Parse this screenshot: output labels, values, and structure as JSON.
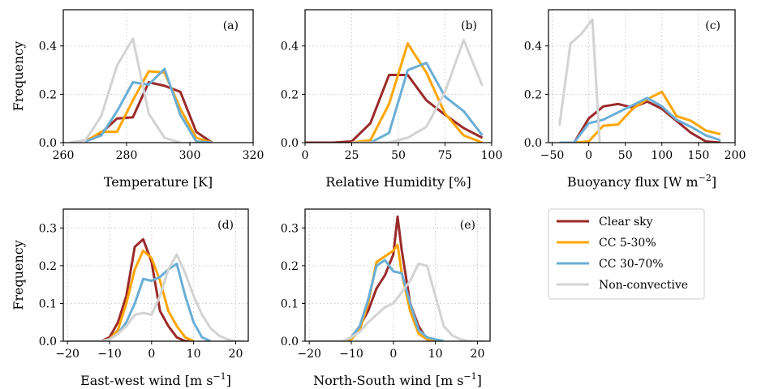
{
  "series_styles": [
    {
      "name": "Clear sky",
      "color": "#9b2a2a"
    },
    {
      "name": "CC 5-30%",
      "color": "#ffa500"
    },
    {
      "name": "CC 30-70%",
      "color": "#6aaed6"
    },
    {
      "name": "Non-convective",
      "color": "#d3d3d3"
    }
  ],
  "chart_data": [
    {
      "type": "line",
      "panel_label": "(a)",
      "xlabel": "Temperature  [K]",
      "ylabel": "Frequency",
      "xlim": [
        260,
        320
      ],
      "ylim": [
        0,
        0.55
      ],
      "xticks": [
        260,
        280,
        300,
        320
      ],
      "yticks": [
        0.0,
        0.2,
        0.4
      ],
      "xtick_labels": [
        "260",
        "280",
        "300",
        "320"
      ],
      "ytick_labels": [
        "0.0",
        "0.2",
        "0.4"
      ],
      "grid": true,
      "series": [
        {
          "name": "Clear sky",
          "x": [
            267,
            272,
            277,
            282,
            287,
            292,
            297,
            302,
            307
          ],
          "y": [
            0.005,
            0.04,
            0.1,
            0.105,
            0.25,
            0.235,
            0.21,
            0.045,
            0.0
          ]
        },
        {
          "name": "CC 5-30%",
          "x": [
            267,
            272,
            277,
            282,
            287,
            292,
            297,
            302,
            307
          ],
          "y": [
            0.005,
            0.045,
            0.045,
            0.175,
            0.295,
            0.29,
            0.14,
            0.02,
            0.0
          ]
        },
        {
          "name": "CC 30-70%",
          "x": [
            267,
            272,
            277,
            282,
            287,
            292,
            297,
            302,
            307
          ],
          "y": [
            0.005,
            0.03,
            0.13,
            0.25,
            0.24,
            0.305,
            0.115,
            0.005,
            0.0
          ]
        },
        {
          "name": "Non-convective",
          "x": [
            262,
            267,
            272,
            277,
            282,
            287,
            292,
            297
          ],
          "y": [
            0.0,
            0.01,
            0.11,
            0.32,
            0.43,
            0.12,
            0.02,
            0.0
          ]
        }
      ]
    },
    {
      "type": "line",
      "panel_label": "(b)",
      "xlabel": "Relative Humidity [%]",
      "ylabel": "",
      "xlim": [
        0,
        100
      ],
      "ylim": [
        0,
        0.55
      ],
      "xticks": [
        0,
        25,
        50,
        75,
        100
      ],
      "yticks": [
        0.0,
        0.2,
        0.4
      ],
      "xtick_labels": [
        "0",
        "25",
        "50",
        "75",
        "100"
      ],
      "ytick_labels": [
        "0.0",
        "0.2",
        "0.4"
      ],
      "grid": true,
      "series": [
        {
          "name": "Clear sky",
          "x": [
            0,
            5,
            15,
            25,
            35,
            45,
            55,
            65,
            75,
            85,
            95
          ],
          "y": [
            0.0,
            0.0,
            0.0,
            0.005,
            0.08,
            0.28,
            0.28,
            0.175,
            0.115,
            0.06,
            0.02
          ]
        },
        {
          "name": "CC 5-30%",
          "x": [
            25,
            35,
            45,
            55,
            65,
            75,
            85,
            95
          ],
          "y": [
            0.0,
            0.01,
            0.16,
            0.41,
            0.29,
            0.12,
            0.03,
            0.0
          ]
        },
        {
          "name": "CC 30-70%",
          "x": [
            25,
            35,
            45,
            55,
            65,
            75,
            85,
            95
          ],
          "y": [
            0.0,
            0.0,
            0.04,
            0.3,
            0.33,
            0.19,
            0.13,
            0.03
          ]
        },
        {
          "name": "Non-convective",
          "x": [
            25,
            35,
            45,
            55,
            65,
            75,
            85,
            95
          ],
          "y": [
            0.0,
            0.0,
            0.0,
            0.02,
            0.065,
            0.21,
            0.425,
            0.235
          ]
        }
      ]
    },
    {
      "type": "line",
      "panel_label": "(c)",
      "xlabel": "Buoyancy flux  [W  m",
      "xlabel_superscript": "−2",
      "xlabel_suffix": "]",
      "ylabel": "",
      "xlim": [
        -55,
        200
      ],
      "ylim": [
        0,
        0.55
      ],
      "xticks": [
        -50,
        0,
        50,
        100,
        150,
        200
      ],
      "yticks": [
        0.0,
        0.2,
        0.4
      ],
      "xtick_labels": [
        "−50",
        "0",
        "50",
        "100",
        "150",
        "200"
      ],
      "ytick_labels": [
        "0.0",
        "0.2",
        "0.4"
      ],
      "grid": true,
      "series": [
        {
          "name": "Clear sky",
          "x": [
            -40,
            -20,
            0,
            20,
            40,
            60,
            80,
            100,
            120,
            140,
            160,
            180
          ],
          "y": [
            0.0,
            0.0,
            0.1,
            0.15,
            0.16,
            0.145,
            0.17,
            0.14,
            0.09,
            0.04,
            0.005,
            0.0
          ]
        },
        {
          "name": "CC 5-30%",
          "x": [
            -20,
            0,
            20,
            40,
            60,
            80,
            100,
            120,
            140,
            160,
            180
          ],
          "y": [
            0.0,
            0.005,
            0.07,
            0.075,
            0.14,
            0.18,
            0.21,
            0.11,
            0.09,
            0.05,
            0.035
          ]
        },
        {
          "name": "CC 30-70%",
          "x": [
            -40,
            -20,
            0,
            20,
            40,
            60,
            80,
            100,
            120,
            140,
            160,
            180
          ],
          "y": [
            0.0,
            0.0,
            0.08,
            0.095,
            0.125,
            0.155,
            0.185,
            0.15,
            0.095,
            0.065,
            0.03,
            0.01
          ]
        },
        {
          "name": "Non-convective",
          "x": [
            -40,
            -25,
            -10,
            5,
            15
          ],
          "y": [
            0.07,
            0.41,
            0.45,
            0.51,
            0.0
          ]
        }
      ]
    },
    {
      "type": "line",
      "panel_label": "(d)",
      "xlabel": "East-west wind  [m  s",
      "xlabel_superscript": "−1",
      "xlabel_suffix": "]",
      "ylabel": "Frequency",
      "xlim": [
        -21,
        23
      ],
      "ylim": [
        0,
        0.35
      ],
      "xticks": [
        -20,
        -10,
        0,
        10,
        20
      ],
      "yticks": [
        0.0,
        0.1,
        0.2,
        0.3
      ],
      "xtick_labels": [
        "−20",
        "−10",
        "0",
        "10",
        "20"
      ],
      "ytick_labels": [
        "0.0",
        "0.1",
        "0.2",
        "0.3"
      ],
      "grid": true,
      "series": [
        {
          "name": "Clear sky",
          "x": [
            -12,
            -10,
            -8,
            -6,
            -4,
            -2,
            0,
            2,
            4,
            6,
            8,
            10
          ],
          "y": [
            0.0,
            0.01,
            0.05,
            0.12,
            0.25,
            0.27,
            0.21,
            0.08,
            0.04,
            0.01,
            0.0,
            0.0
          ]
        },
        {
          "name": "CC 5-30%",
          "x": [
            -12,
            -10,
            -8,
            -6,
            -4,
            -2,
            0,
            2,
            4,
            6,
            8,
            10
          ],
          "y": [
            0.0,
            0.005,
            0.03,
            0.1,
            0.19,
            0.24,
            0.22,
            0.16,
            0.08,
            0.04,
            0.01,
            0.0
          ]
        },
        {
          "name": "CC 30-70%",
          "x": [
            -12,
            -10,
            -8,
            -6,
            -4,
            -2,
            0,
            2,
            4,
            6,
            8,
            10,
            12,
            14
          ],
          "y": [
            0.0,
            0.005,
            0.02,
            0.05,
            0.1,
            0.165,
            0.16,
            0.17,
            0.19,
            0.205,
            0.12,
            0.05,
            0.01,
            0.0
          ]
        },
        {
          "name": "Non-convective",
          "x": [
            -20,
            -12,
            -10,
            -8,
            -6,
            -4,
            -2,
            0,
            2,
            4,
            6,
            8,
            10,
            12,
            14,
            16,
            18,
            20,
            22
          ],
          "y": [
            0.0,
            0.0,
            0.005,
            0.02,
            0.04,
            0.07,
            0.075,
            0.07,
            0.12,
            0.19,
            0.23,
            0.18,
            0.12,
            0.07,
            0.035,
            0.015,
            0.005,
            0.0,
            0.0
          ]
        }
      ]
    },
    {
      "type": "line",
      "panel_label": "(e)",
      "xlabel": "North-South wind  [m  s",
      "xlabel_superscript": "−1",
      "xlabel_suffix": "]",
      "ylabel": "",
      "xlim": [
        -21,
        23
      ],
      "ylim": [
        0,
        0.35
      ],
      "xticks": [
        -20,
        -10,
        0,
        10,
        20
      ],
      "yticks": [
        0.0,
        0.1,
        0.2,
        0.3
      ],
      "xtick_labels": [
        "−20",
        "−10",
        "0",
        "10",
        "20"
      ],
      "ytick_labels": [
        "0.0",
        "0.1",
        "0.2",
        "0.3"
      ],
      "grid": true,
      "series": [
        {
          "name": "Clear sky",
          "x": [
            -12,
            -10,
            -8,
            -6,
            -4,
            -2,
            0,
            1,
            2,
            4,
            6,
            8,
            10
          ],
          "y": [
            0.0,
            0.01,
            0.04,
            0.08,
            0.14,
            0.175,
            0.23,
            0.33,
            0.24,
            0.1,
            0.04,
            0.005,
            0.0
          ]
        },
        {
          "name": "CC 5-30%",
          "x": [
            -12,
            -10,
            -8,
            -6,
            -4,
            -2,
            0,
            1,
            2,
            4,
            6,
            8,
            10
          ],
          "y": [
            0.0,
            0.005,
            0.03,
            0.1,
            0.21,
            0.225,
            0.24,
            0.255,
            0.18,
            0.08,
            0.02,
            0.005,
            0.0
          ]
        },
        {
          "name": "CC 30-70%",
          "x": [
            -12,
            -10,
            -8,
            -6,
            -4,
            -2,
            0,
            2,
            4,
            6,
            8,
            10,
            12
          ],
          "y": [
            0.0,
            0.01,
            0.04,
            0.11,
            0.2,
            0.215,
            0.185,
            0.18,
            0.1,
            0.03,
            0.01,
            0.005,
            0.0
          ]
        },
        {
          "name": "Non-convective",
          "x": [
            -20,
            -12,
            -10,
            -8,
            -6,
            -4,
            -2,
            0,
            2,
            4,
            6,
            8,
            10,
            12,
            14,
            16,
            18,
            20,
            22
          ],
          "y": [
            0.0,
            0.0,
            0.01,
            0.025,
            0.05,
            0.07,
            0.09,
            0.1,
            0.13,
            0.16,
            0.205,
            0.2,
            0.12,
            0.04,
            0.015,
            0.005,
            0.0,
            0.0,
            0.0
          ]
        }
      ]
    }
  ]
}
